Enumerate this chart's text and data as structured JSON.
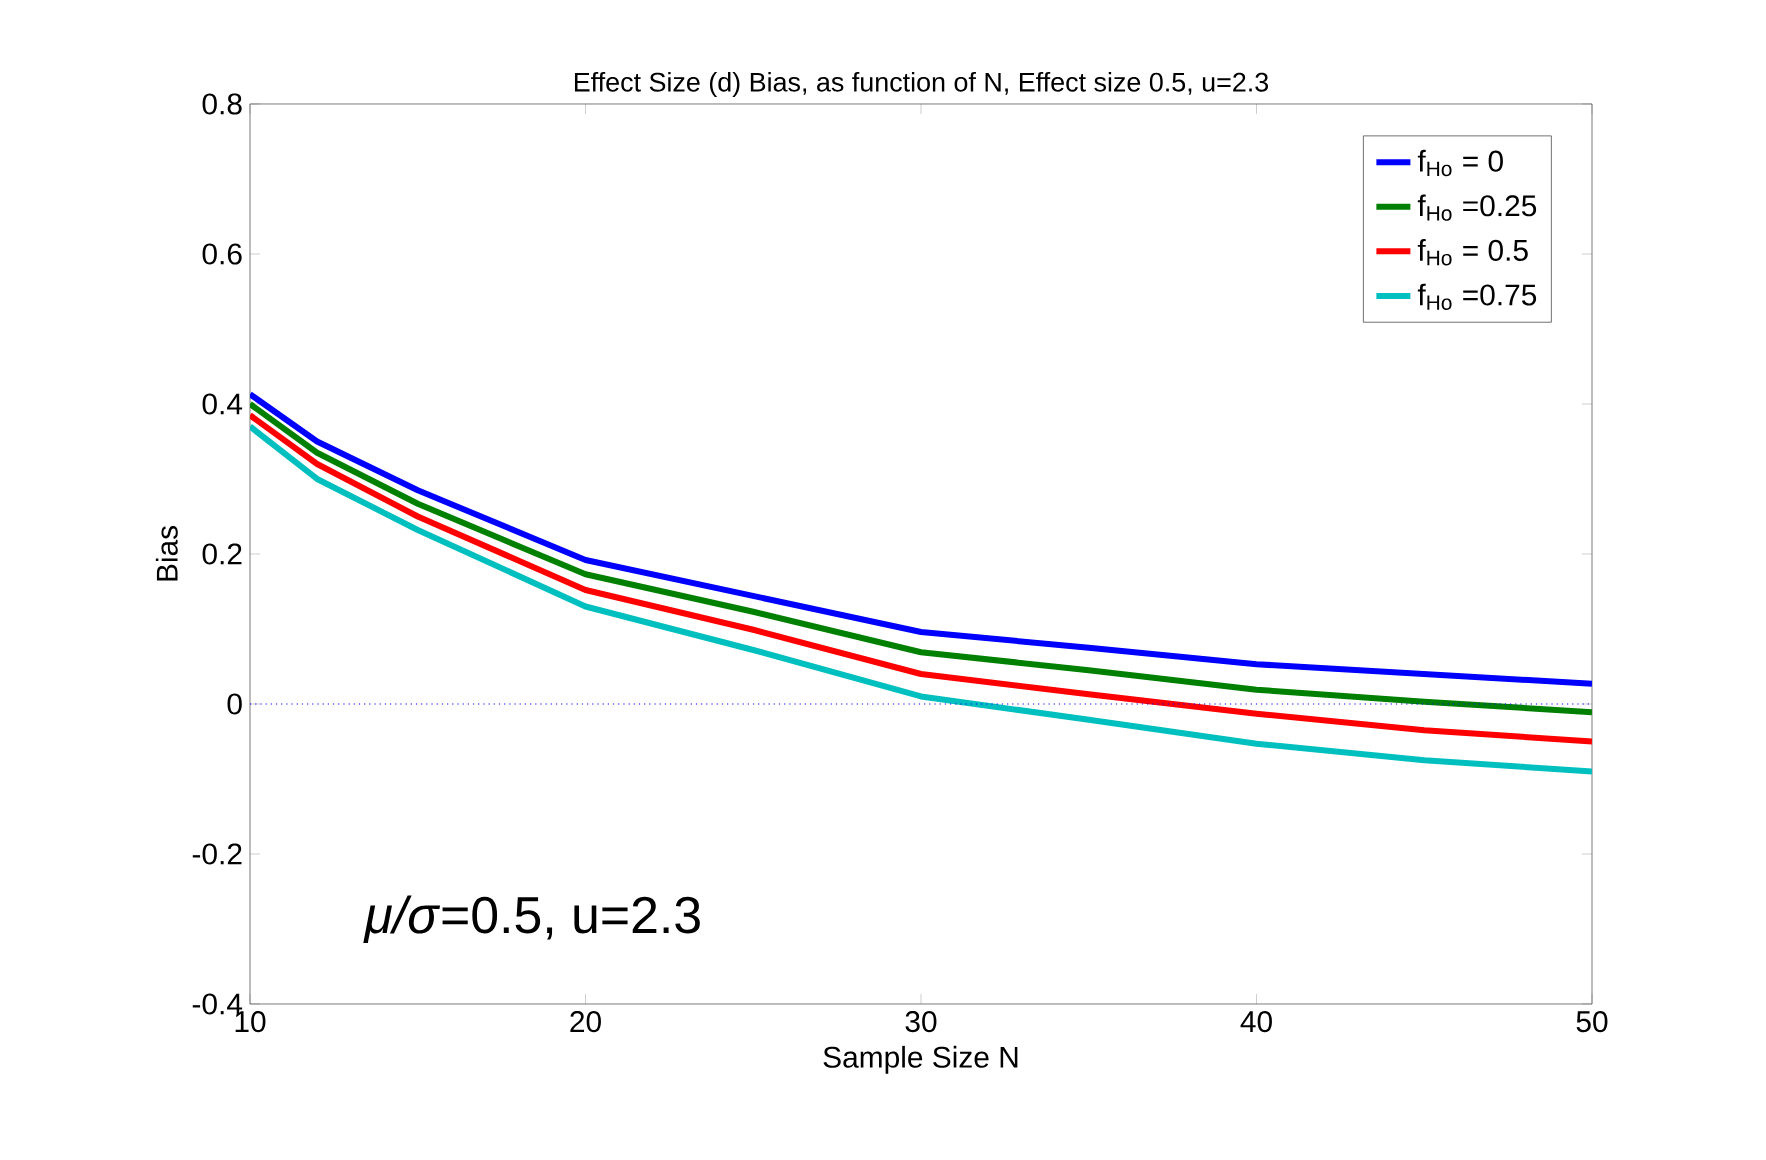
{
  "chart_data": {
    "type": "line",
    "title": "Effect Size (d) Bias, as function of N, Effect size 0.5, u=2.3",
    "xlabel": "Sample Size N",
    "ylabel": "Bias",
    "x": [
      10,
      12,
      15,
      20,
      25,
      30,
      35,
      40,
      45,
      50
    ],
    "series": [
      {
        "name": "f$_{Ho}$ =   0",
        "color": "#0000ff",
        "values": [
          0.413,
          0.35,
          0.285,
          0.192,
          0.144,
          0.096,
          0.075,
          0.053,
          0.04,
          0.027
        ]
      },
      {
        "name": "f$_{Ho}$ =0.25",
        "color": "#008000",
        "values": [
          0.4,
          0.335,
          0.267,
          0.173,
          0.123,
          0.069,
          0.045,
          0.019,
          0.003,
          -0.011
        ]
      },
      {
        "name": "f$_{Ho}$ = 0.5",
        "color": "#ff0000",
        "values": [
          0.385,
          0.32,
          0.25,
          0.152,
          0.099,
          0.04,
          0.013,
          -0.013,
          -0.035,
          -0.05
        ]
      },
      {
        "name": "f$_{Ho}$ =0.75",
        "color": "#00bfbf",
        "values": [
          0.37,
          0.3,
          0.232,
          0.13,
          0.072,
          0.01,
          -0.021,
          -0.053,
          -0.075,
          -0.09
        ]
      }
    ],
    "xlim": [
      10,
      50
    ],
    "ylim": [
      -0.4,
      0.8
    ],
    "xticks": [
      10,
      20,
      30,
      40,
      50
    ],
    "yticks": [
      -0.4,
      -0.2,
      0,
      0.2,
      0.4,
      0.6,
      0.8
    ],
    "ref_lines": [
      {
        "axis": "y",
        "value": 0,
        "color": "#0000ff",
        "line_style": "dotted"
      }
    ],
    "annotations": [
      "*μ/σ*=0.5, u=2.3"
    ],
    "legend": "top right",
    "grid": false,
    "marker": "none",
    "line_style": "solid"
  }
}
